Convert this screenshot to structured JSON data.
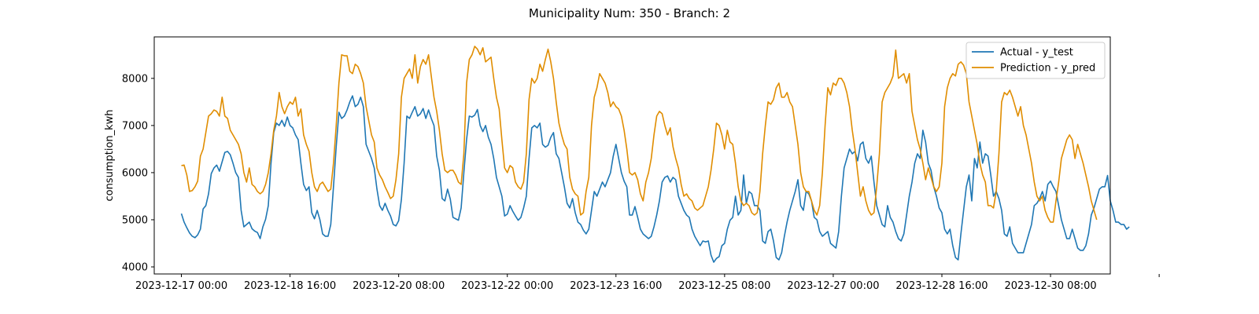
{
  "chart_data": {
    "type": "line",
    "title": "Municipality Num: 350 - Branch: 2",
    "xlabel": "",
    "ylabel": "consumption_kwh",
    "ylim": [
      3850,
      8880
    ],
    "xlim_hours": [
      -10,
      342
    ],
    "yticks": [
      4000,
      5000,
      6000,
      7000,
      8000
    ],
    "xticks": [
      {
        "label": "2023-12-17 00:00",
        "hour": 0
      },
      {
        "label": "2023-12-18 16:00",
        "hour": 40
      },
      {
        "label": "2023-12-20 08:00",
        "hour": 80
      },
      {
        "label": "2023-12-22 00:00",
        "hour": 120
      },
      {
        "label": "2023-12-23 16:00",
        "hour": 160
      },
      {
        "label": "2023-12-25 08:00",
        "hour": 200
      },
      {
        "label": "2023-12-27 00:00",
        "hour": 240
      },
      {
        "label": "2023-12-28 16:00",
        "hour": 280
      },
      {
        "label": "2023-12-30 08:00",
        "hour": 320
      },
      {
        "label": "",
        "hour": 360
      }
    ],
    "grid": false,
    "legend_position": "top-right",
    "x_start": "2023-12-17 00:00",
    "x_step_hours": 1,
    "series": [
      {
        "name": "Actual - y_test",
        "color": "#1f77b4",
        "values": [
          5130,
          4950,
          4830,
          4720,
          4650,
          4620,
          4680,
          4800,
          5230,
          5300,
          5550,
          5980,
          6100,
          6160,
          6030,
          6230,
          6430,
          6450,
          6380,
          6200,
          6000,
          5900,
          5200,
          4850,
          4900,
          4950,
          4810,
          4760,
          4730,
          4600,
          4850,
          5010,
          5300,
          6200,
          6850,
          7050,
          7000,
          7110,
          6980,
          7180,
          7000,
          6950,
          6800,
          6700,
          6200,
          5750,
          5620,
          5700,
          5150,
          5020,
          5200,
          5000,
          4700,
          4650,
          4650,
          4900,
          5700,
          6550,
          7280,
          7150,
          7200,
          7330,
          7500,
          7630,
          7400,
          7450,
          7600,
          7400,
          6600,
          6450,
          6300,
          6100,
          5650,
          5300,
          5200,
          5350,
          5200,
          5080,
          4900,
          4870,
          4980,
          5430,
          6200,
          7200,
          7150,
          7280,
          7400,
          7200,
          7250,
          7360,
          7150,
          7330,
          7150,
          7000,
          6350,
          6050,
          5450,
          5400,
          5650,
          5440,
          5050,
          5020,
          4990,
          5250,
          6000,
          6700,
          7200,
          7180,
          7220,
          7340,
          7000,
          6870,
          7000,
          6750,
          6600,
          6300,
          5900,
          5700,
          5500,
          5080,
          5120,
          5300,
          5180,
          5080,
          4990,
          5050,
          5250,
          5500,
          6300,
          6950,
          7000,
          6950,
          7050,
          6600,
          6540,
          6580,
          6750,
          6850,
          6400,
          6300,
          6000,
          5700,
          5350,
          5250,
          5450,
          5150,
          4950,
          4900,
          4780,
          4700,
          4800,
          5200,
          5600,
          5500,
          5650,
          5800,
          5700,
          5850,
          6000,
          6350,
          6600,
          6300,
          6000,
          5820,
          5700,
          5100,
          5100,
          5280,
          5050,
          4800,
          4700,
          4650,
          4600,
          4650,
          4850,
          5100,
          5400,
          5800,
          5900,
          5930,
          5800,
          5900,
          5850,
          5500,
          5350,
          5200,
          5100,
          5050,
          4800,
          4650,
          4550,
          4450,
          4550,
          4530,
          4550,
          4250,
          4100,
          4180,
          4220,
          4450,
          4500,
          4800,
          4990,
          5050,
          5500,
          5100,
          5200,
          5950,
          5350,
          5600,
          5550,
          5300,
          5300,
          5200,
          4550,
          4500,
          4750,
          4800,
          4550,
          4200,
          4150,
          4300,
          4650,
          4950,
          5200,
          5400,
          5600,
          5850,
          5300,
          5200,
          5600,
          5550,
          5400,
          5050,
          5000,
          4750,
          4650,
          4700,
          4750,
          4500,
          4450,
          4400,
          4750,
          5500,
          6100,
          6300,
          6500,
          6400,
          6450,
          6250,
          6600,
          6650,
          6300,
          6200,
          6350,
          5800,
          5300,
          5100,
          4900,
          4850,
          5300,
          5050,
          4950,
          4750,
          4600,
          4550,
          4700,
          5100,
          5500,
          5800,
          6200,
          6400,
          6300,
          6900,
          6650,
          6200,
          6050,
          5700,
          5500,
          5250,
          5150,
          4800,
          4700,
          4800,
          4450,
          4200,
          4150,
          4700,
          5200,
          5700,
          5950,
          5400,
          6300,
          6100,
          6650,
          6200,
          6400,
          6350,
          5950,
          5500,
          5600,
          5450,
          5200,
          4700,
          4650,
          4850,
          4500,
          4400,
          4300,
          4300,
          4300,
          4500,
          4700,
          4900,
          5300,
          5350,
          5450,
          5600,
          5400,
          5750,
          5820,
          5700,
          5600,
          5300,
          5000,
          4800,
          4600,
          4600,
          4800,
          4600,
          4400,
          4350,
          4350,
          4450,
          4700,
          5100,
          5250,
          5450,
          5650,
          5700,
          5700,
          5940,
          5400,
          5200,
          4950,
          4950,
          4900,
          4900,
          4800,
          4850
        ]
      },
      {
        "name": "Prediction - y_pred",
        "color": "#e08d00",
        "values": [
          6150,
          6160,
          5950,
          5600,
          5620,
          5700,
          5820,
          6350,
          6500,
          6850,
          7200,
          7250,
          7330,
          7300,
          7200,
          7600,
          7200,
          7150,
          6900,
          6800,
          6700,
          6600,
          6400,
          6000,
          5800,
          6100,
          5750,
          5700,
          5600,
          5550,
          5600,
          5750,
          6000,
          6400,
          6900,
          7200,
          7700,
          7400,
          7250,
          7400,
          7500,
          7450,
          7600,
          7200,
          7350,
          6800,
          6600,
          6450,
          6000,
          5700,
          5600,
          5750,
          5800,
          5700,
          5600,
          5650,
          6200,
          7000,
          7900,
          8500,
          8480,
          8480,
          8150,
          8100,
          8300,
          8250,
          8100,
          7900,
          7400,
          7100,
          6800,
          6650,
          6100,
          5950,
          5850,
          5700,
          5580,
          5450,
          5500,
          5850,
          6400,
          7600,
          8000,
          8100,
          8200,
          8000,
          8500,
          7900,
          8250,
          8400,
          8300,
          8500,
          8050,
          7600,
          7300,
          6900,
          6400,
          6050,
          6000,
          6050,
          6050,
          5950,
          5800,
          5750,
          6400,
          7900,
          8400,
          8500,
          8680,
          8620,
          8500,
          8650,
          8350,
          8400,
          8450,
          8000,
          7600,
          7350,
          6700,
          6100,
          6000,
          6150,
          6100,
          5800,
          5700,
          5650,
          5800,
          6400,
          7550,
          8000,
          7900,
          8000,
          8300,
          8150,
          8400,
          8620,
          8350,
          8000,
          7500,
          7050,
          6800,
          6600,
          6500,
          5900,
          5650,
          5550,
          5500,
          5100,
          5150,
          5600,
          5900,
          7000,
          7600,
          7800,
          8100,
          8000,
          7900,
          7700,
          7400,
          7500,
          7400,
          7350,
          7200,
          6900,
          6500,
          6000,
          5950,
          6000,
          5850,
          5550,
          5400,
          5800,
          6000,
          6300,
          6800,
          7200,
          7300,
          7250,
          7000,
          6800,
          6950,
          6550,
          6300,
          6100,
          5750,
          5500,
          5550,
          5450,
          5400,
          5250,
          5200,
          5250,
          5300,
          5500,
          5700,
          6050,
          6500,
          7050,
          7000,
          6800,
          6500,
          6900,
          6650,
          6600,
          6200,
          5700,
          5400,
          5300,
          5350,
          5300,
          5150,
          5100,
          5150,
          5600,
          6400,
          7000,
          7500,
          7450,
          7550,
          7800,
          7900,
          7600,
          7600,
          7700,
          7500,
          7400,
          7000,
          6600,
          6000,
          5700,
          5600,
          5600,
          5400,
          5200,
          5100,
          5300,
          6000,
          7000,
          7800,
          7650,
          7900,
          7850,
          8000,
          8000,
          7900,
          7700,
          7400,
          6900,
          6500,
          6000,
          5500,
          5700,
          5400,
          5200,
          5100,
          5150,
          5700,
          6400,
          7500,
          7700,
          7800,
          7900,
          8050,
          8600,
          8000,
          8050,
          8100,
          7900,
          8100,
          7300,
          7000,
          6700,
          6500,
          6200,
          5850,
          6100,
          5900,
          5700,
          5600,
          5700,
          6200,
          7400,
          7800,
          8000,
          8100,
          8050,
          8300,
          8350,
          8280,
          8100,
          7500,
          7200,
          6900,
          6600,
          6200,
          5950,
          5800,
          5300,
          5300,
          5250,
          5600,
          6400,
          7500,
          7700,
          7650,
          7750,
          7600,
          7400,
          7200,
          7400,
          7000,
          6800,
          6500,
          6200,
          5800,
          5500,
          5400,
          5500,
          5200,
          5050,
          4950,
          4950,
          5400,
          5800,
          6300,
          6500,
          6700,
          6800,
          6700,
          6300,
          6600,
          6400,
          6200,
          5950,
          5700,
          5400,
          5200,
          5000
        ]
      }
    ]
  }
}
